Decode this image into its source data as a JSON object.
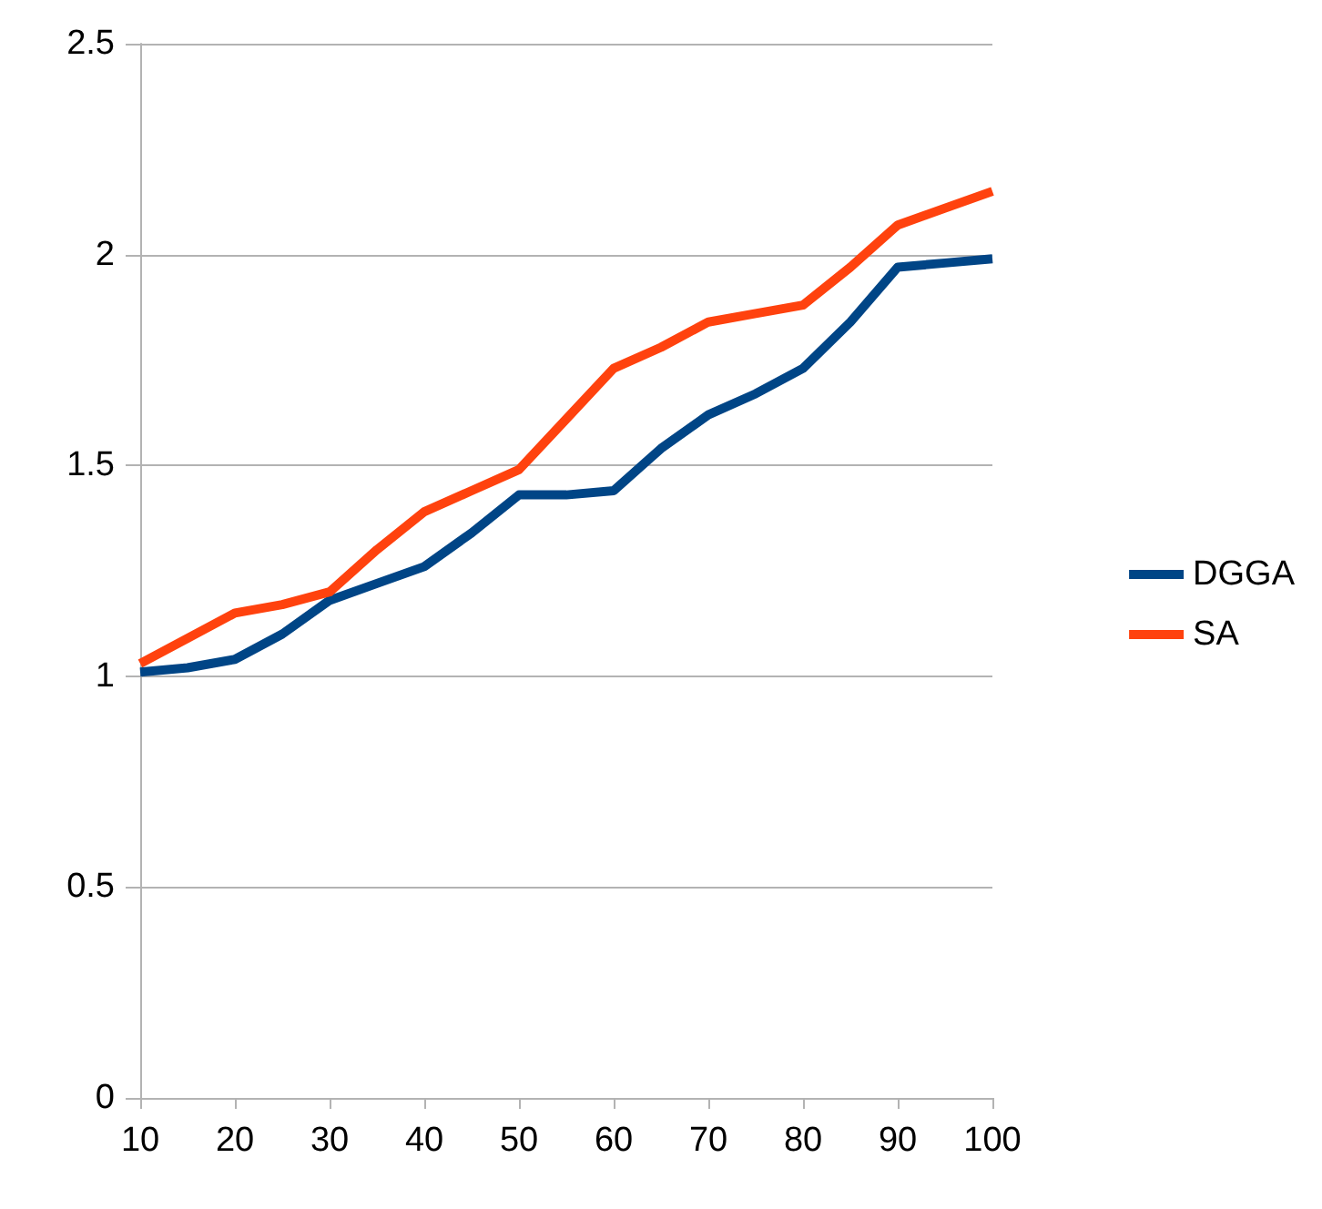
{
  "chart_data": {
    "type": "line",
    "x": [
      10,
      15,
      20,
      25,
      30,
      35,
      40,
      45,
      50,
      55,
      60,
      65,
      70,
      75,
      80,
      85,
      90,
      95,
      100
    ],
    "series": [
      {
        "name": "DGGA",
        "color": "#004586",
        "values": [
          1.01,
          1.02,
          1.04,
          1.1,
          1.18,
          1.22,
          1.26,
          1.34,
          1.43,
          1.43,
          1.44,
          1.54,
          1.62,
          1.67,
          1.73,
          1.84,
          1.97,
          1.98,
          1.99
        ]
      },
      {
        "name": "SA",
        "color": "#ff420e",
        "values": [
          1.03,
          1.09,
          1.15,
          1.17,
          1.2,
          1.3,
          1.39,
          1.44,
          1.49,
          1.61,
          1.73,
          1.78,
          1.84,
          1.86,
          1.88,
          1.97,
          2.07,
          2.11,
          2.15
        ]
      }
    ],
    "xlim": [
      10,
      100
    ],
    "xticks": [
      10,
      20,
      30,
      40,
      50,
      60,
      70,
      80,
      90,
      100
    ],
    "ylim": [
      0,
      2.5
    ],
    "yticks": [
      0,
      0.5,
      1,
      1.5,
      2,
      2.5
    ],
    "grid": "y",
    "legend": "right",
    "marker": "none",
    "line_style": "solid"
  }
}
